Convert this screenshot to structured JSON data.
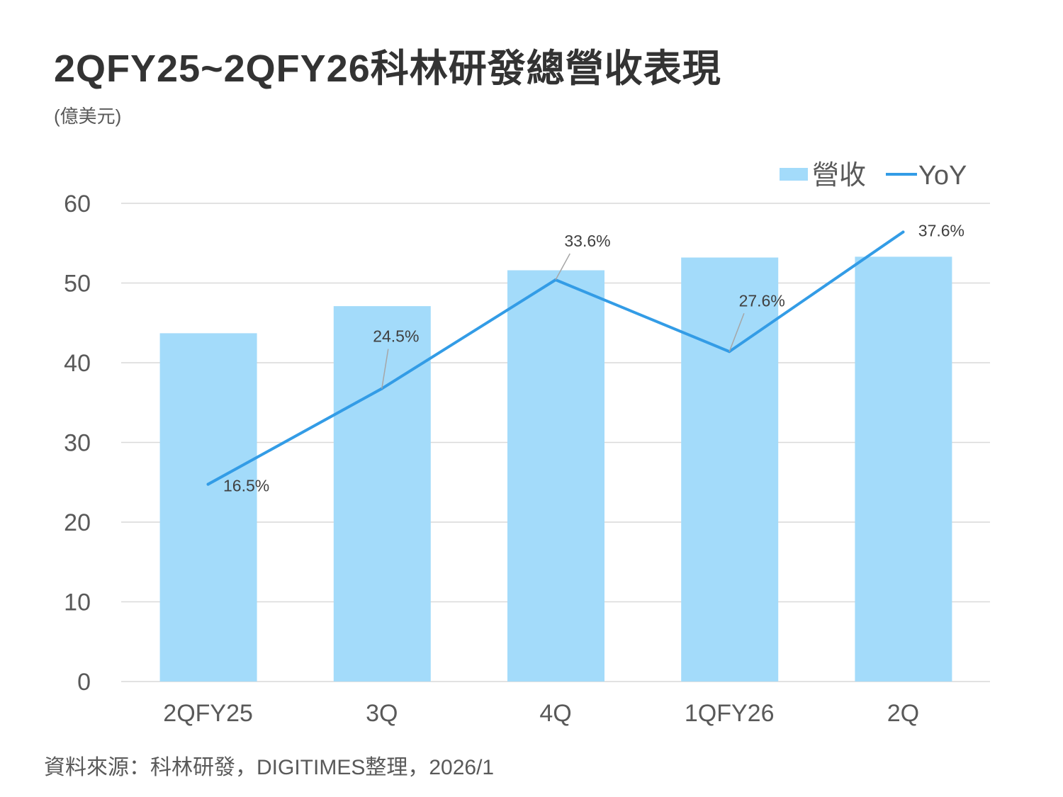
{
  "title": "2QFY25~2QFY26科林研發總營收表現",
  "unit": "(億美元)",
  "source": "資料來源：科林研發，DIGITIMES整理，2026/1",
  "chart_data": {
    "type": "bar",
    "title": "2QFY25~2QFY26科林研發總營收表現",
    "categories": [
      "2QFY25",
      "3Q",
      "4Q",
      "1QFY26",
      "2Q"
    ],
    "ylim": [
      0,
      60
    ],
    "yticks": [
      "0",
      "10",
      "20",
      "30",
      "40",
      "50",
      "60"
    ],
    "secondary_ylim": [
      0,
      40
    ],
    "grid": true,
    "legend_position": "top-right",
    "series": [
      {
        "name": "營收",
        "type": "bar",
        "color": "#A3DBFA",
        "values": [
          43.7,
          47.1,
          51.6,
          53.2,
          53.3
        ]
      },
      {
        "name": "YoY",
        "type": "line",
        "axis": "secondary",
        "color": "#339CE6",
        "values": [
          16.5,
          24.5,
          33.6,
          27.6,
          37.6
        ],
        "labels": [
          "16.5%",
          "24.5%",
          "33.6%",
          "27.6%",
          "37.6%"
        ]
      }
    ]
  }
}
